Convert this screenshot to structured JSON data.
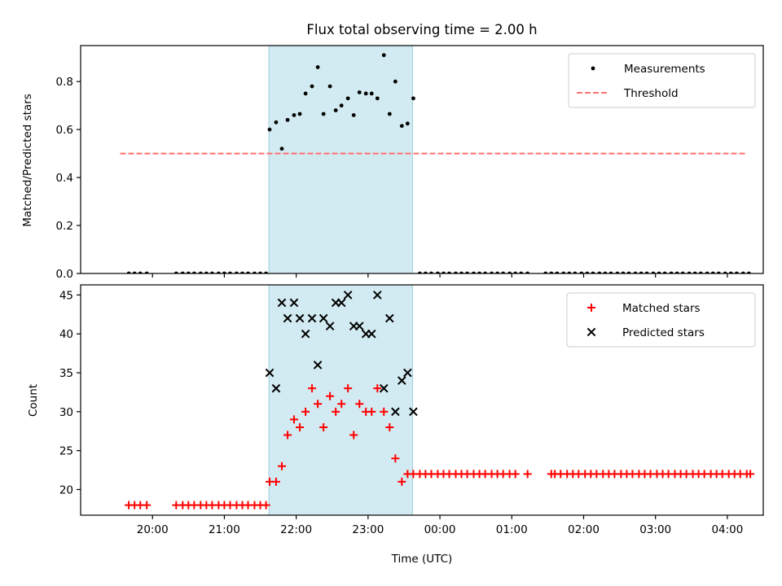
{
  "chart_data": {
    "type": "scatter",
    "title": "Flux total observing time = 2.00 h",
    "xlabel": "Time (UTC)",
    "x_ticks": [
      "20:00",
      "21:00",
      "22:00",
      "23:00",
      "00:00",
      "01:00",
      "02:00",
      "03:00",
      "04:00"
    ],
    "highlight_span": {
      "start_h": 21.62,
      "end_h": 23.62,
      "color": "#add8e6"
    },
    "panels": [
      {
        "ylabel": "Matched/Predicted stars",
        "ylim": [
          0,
          0.95
        ],
        "y_ticks": [
          "0.0",
          "0.2",
          "0.4",
          "0.6",
          "0.8"
        ],
        "legend": {
          "placement": "top-right",
          "entries": [
            "Measurements",
            "Threshold"
          ]
        },
        "series": [
          {
            "name": "Measurements",
            "color": "#000000",
            "marker": "dot",
            "zero_points_h": [
              19.67,
              19.75,
              19.83,
              19.92,
              20.33,
              20.42,
              20.5,
              20.58,
              20.67,
              20.75,
              20.83,
              20.92,
              21.0,
              21.08,
              21.17,
              21.25,
              21.33,
              21.42,
              21.5,
              21.58,
              23.72,
              23.8,
              23.88,
              23.97,
              24.05,
              24.13,
              24.22,
              24.3,
              24.38,
              24.47,
              24.55,
              24.63,
              24.72,
              24.8,
              24.88,
              24.97,
              25.05,
              25.13,
              25.22,
              25.47,
              25.55,
              25.63,
              25.72,
              25.8,
              25.88,
              25.97,
              26.05,
              26.13,
              26.22,
              26.3,
              26.38,
              26.47,
              26.55,
              26.63,
              26.72,
              26.8,
              26.88,
              26.97,
              27.05,
              27.13,
              27.22,
              27.3,
              27.38,
              27.47,
              27.55,
              27.63,
              27.72,
              27.8,
              27.88,
              27.97,
              28.05,
              28.13,
              28.22,
              28.3
            ],
            "points": [
              [
                21.63,
                0.6
              ],
              [
                21.72,
                0.63
              ],
              [
                21.8,
                0.52
              ],
              [
                21.88,
                0.64
              ],
              [
                21.97,
                0.66
              ],
              [
                22.05,
                0.665
              ],
              [
                22.13,
                0.75
              ],
              [
                22.22,
                0.78
              ],
              [
                22.3,
                0.86
              ],
              [
                22.38,
                0.665
              ],
              [
                22.47,
                0.78
              ],
              [
                22.55,
                0.68
              ],
              [
                22.63,
                0.7
              ],
              [
                22.72,
                0.73
              ],
              [
                22.8,
                0.66
              ],
              [
                22.88,
                0.755
              ],
              [
                22.97,
                0.75
              ],
              [
                23.05,
                0.75
              ],
              [
                23.13,
                0.73
              ],
              [
                23.22,
                0.91
              ],
              [
                23.3,
                0.665
              ],
              [
                23.38,
                0.8
              ],
              [
                23.47,
                0.615
              ],
              [
                23.55,
                0.625
              ],
              [
                23.63,
                0.73
              ]
            ]
          },
          {
            "name": "Threshold",
            "color": "#ff7070",
            "style": "dashed",
            "y": 0.5,
            "x_range_h": [
              19.55,
              28.25
            ]
          }
        ]
      },
      {
        "ylabel": "Count",
        "ylim": [
          16.7,
          46.3
        ],
        "y_ticks": [
          "20",
          "25",
          "30",
          "35",
          "40",
          "45"
        ],
        "legend": {
          "placement": "top-right",
          "entries": [
            "Matched stars",
            "Predicted stars"
          ]
        },
        "series": [
          {
            "name": "Matched stars",
            "color": "#ff0000",
            "marker": "plus",
            "points": [
              [
                19.67,
                18
              ],
              [
                19.75,
                18
              ],
              [
                19.83,
                18
              ],
              [
                19.92,
                18
              ],
              [
                20.33,
                18
              ],
              [
                20.42,
                18
              ],
              [
                20.5,
                18
              ],
              [
                20.58,
                18
              ],
              [
                20.67,
                18
              ],
              [
                20.75,
                18
              ],
              [
                20.83,
                18
              ],
              [
                20.92,
                18
              ],
              [
                21.0,
                18
              ],
              [
                21.08,
                18
              ],
              [
                21.17,
                18
              ],
              [
                21.25,
                18
              ],
              [
                21.33,
                18
              ],
              [
                21.42,
                18
              ],
              [
                21.5,
                18
              ],
              [
                21.58,
                18
              ],
              [
                21.63,
                21
              ],
              [
                21.72,
                21
              ],
              [
                21.8,
                23
              ],
              [
                21.88,
                27
              ],
              [
                21.97,
                29
              ],
              [
                22.05,
                28
              ],
              [
                22.13,
                30
              ],
              [
                22.22,
                33
              ],
              [
                22.3,
                31
              ],
              [
                22.38,
                28
              ],
              [
                22.47,
                32
              ],
              [
                22.55,
                30
              ],
              [
                22.63,
                31
              ],
              [
                22.72,
                33
              ],
              [
                22.8,
                27
              ],
              [
                22.88,
                31
              ],
              [
                22.97,
                30
              ],
              [
                23.05,
                30
              ],
              [
                23.13,
                33
              ],
              [
                23.22,
                30
              ],
              [
                23.3,
                28
              ],
              [
                23.38,
                24
              ],
              [
                23.47,
                21
              ],
              [
                23.55,
                22
              ],
              [
                23.63,
                22
              ],
              [
                23.72,
                22
              ],
              [
                23.8,
                22
              ],
              [
                23.88,
                22
              ],
              [
                23.97,
                22
              ],
              [
                24.05,
                22
              ],
              [
                24.13,
                22
              ],
              [
                24.22,
                22
              ],
              [
                24.3,
                22
              ],
              [
                24.38,
                22
              ],
              [
                24.47,
                22
              ],
              [
                24.55,
                22
              ],
              [
                24.63,
                22
              ],
              [
                24.72,
                22
              ],
              [
                24.8,
                22
              ],
              [
                24.88,
                22
              ],
              [
                24.97,
                22
              ],
              [
                25.05,
                22
              ],
              [
                25.22,
                22
              ],
              [
                25.55,
                22
              ],
              [
                25.6,
                22
              ],
              [
                25.68,
                22
              ],
              [
                25.77,
                22
              ],
              [
                25.85,
                22
              ],
              [
                25.93,
                22
              ],
              [
                26.02,
                22
              ],
              [
                26.1,
                22
              ],
              [
                26.18,
                22
              ],
              [
                26.27,
                22
              ],
              [
                26.35,
                22
              ],
              [
                26.43,
                22
              ],
              [
                26.52,
                22
              ],
              [
                26.6,
                22
              ],
              [
                26.68,
                22
              ],
              [
                26.77,
                22
              ],
              [
                26.85,
                22
              ],
              [
                26.93,
                22
              ],
              [
                27.02,
                22
              ],
              [
                27.1,
                22
              ],
              [
                27.18,
                22
              ],
              [
                27.27,
                22
              ],
              [
                27.35,
                22
              ],
              [
                27.43,
                22
              ],
              [
                27.52,
                22
              ],
              [
                27.6,
                22
              ],
              [
                27.68,
                22
              ],
              [
                27.77,
                22
              ],
              [
                27.85,
                22
              ],
              [
                27.93,
                22
              ],
              [
                28.02,
                22
              ],
              [
                28.1,
                22
              ],
              [
                28.18,
                22
              ],
              [
                28.27,
                22
              ],
              [
                28.32,
                22
              ]
            ]
          },
          {
            "name": "Predicted stars",
            "color": "#000000",
            "marker": "x",
            "points": [
              [
                21.63,
                35
              ],
              [
                21.72,
                33
              ],
              [
                21.8,
                44
              ],
              [
                21.88,
                42
              ],
              [
                21.97,
                44
              ],
              [
                22.05,
                42
              ],
              [
                22.13,
                40
              ],
              [
                22.22,
                42
              ],
              [
                22.3,
                36
              ],
              [
                22.38,
                42
              ],
              [
                22.47,
                41
              ],
              [
                22.55,
                44
              ],
              [
                22.63,
                44
              ],
              [
                22.72,
                45
              ],
              [
                22.8,
                41
              ],
              [
                22.88,
                41
              ],
              [
                22.97,
                40
              ],
              [
                23.05,
                40
              ],
              [
                23.13,
                45
              ],
              [
                23.22,
                33
              ],
              [
                23.3,
                42
              ],
              [
                23.38,
                30
              ],
              [
                23.47,
                34
              ],
              [
                23.55,
                35
              ],
              [
                23.63,
                30
              ]
            ]
          }
        ]
      }
    ]
  }
}
